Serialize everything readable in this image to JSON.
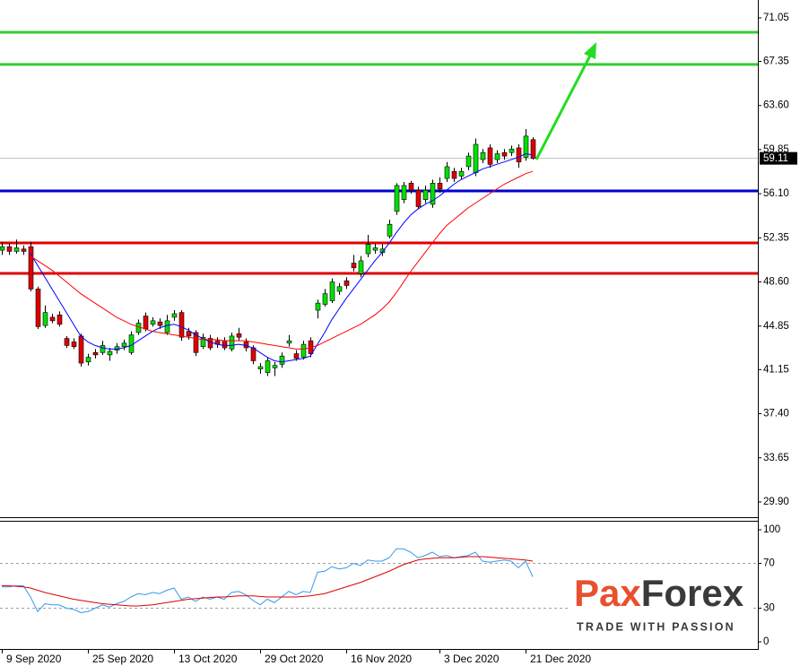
{
  "chart_data": [
    {
      "type": "candlestick",
      "categories": [
        "9 Sep 2020",
        null,
        null,
        null,
        null,
        null,
        null,
        null,
        null,
        null,
        null,
        null,
        "25 Sep 2020",
        null,
        null,
        null,
        null,
        null,
        null,
        null,
        null,
        null,
        null,
        null,
        "13 Oct 2020",
        null,
        null,
        null,
        null,
        null,
        null,
        null,
        null,
        null,
        null,
        null,
        "29 Oct 2020",
        null,
        null,
        null,
        null,
        null,
        null,
        null,
        null,
        null,
        null,
        null,
        "16 Nov 2020",
        null,
        null,
        null,
        null,
        null,
        null,
        null,
        null,
        null,
        null,
        null,
        null,
        "3 Dec 2020",
        null,
        null,
        null,
        null,
        null,
        null,
        null,
        null,
        null,
        null,
        null,
        "21 Dec 2020",
        null
      ],
      "open": [
        51.3,
        51.6,
        51.2,
        51.4,
        51.6,
        48.0,
        44.9,
        45.6,
        45.8,
        43.8,
        43.5,
        44.0,
        41.8,
        42.6,
        42.6,
        42.4,
        42.8,
        43.1,
        42.6,
        44.3,
        45.7,
        45.0,
        45.2,
        44.3,
        45.6,
        46.0,
        44.4,
        44.3,
        43.1,
        43.8,
        43.6,
        43.6,
        42.9,
        44.2,
        43.5,
        43.0,
        41.2,
        40.9,
        41.3,
        41.6,
        43.4,
        42.5,
        42.2,
        43.6,
        46.2,
        46.7,
        47.0,
        47.8,
        48.7,
        50.2,
        49.3,
        51.0,
        51.3,
        51.1,
        52.5,
        54.6,
        55.6,
        57.0,
        56.4,
        55.6,
        55.2,
        57.0,
        57.4,
        58.0,
        57.6,
        58.4,
        57.9,
        59.0,
        60.0,
        59.0,
        59.6,
        59.6,
        60.0,
        59.2,
        60.7
      ],
      "high": [
        52.0,
        51.9,
        52.2,
        51.7,
        52.0,
        48.2,
        46.6,
        45.9,
        46.1,
        44.0,
        43.8,
        44.2,
        42.5,
        42.9,
        43.6,
        43.0,
        43.4,
        43.7,
        44.4,
        45.4,
        46.0,
        45.6,
        45.5,
        45.8,
        46.2,
        46.2,
        44.7,
        44.5,
        44.2,
        44.1,
        43.9,
        43.9,
        44.3,
        44.7,
        43.8,
        43.2,
        41.7,
        42.2,
        41.8,
        42.6,
        44.1,
        42.8,
        43.6,
        43.9,
        47.1,
        48.0,
        48.9,
        48.5,
        49.0,
        50.9,
        50.8,
        52.6,
        51.9,
        51.8,
        53.9,
        57.0,
        57.1,
        57.2,
        56.7,
        56.8,
        57.3,
        57.5,
        58.8,
        58.3,
        58.3,
        59.6,
        60.8,
        59.9,
        60.3,
        59.8,
        59.9,
        60.2,
        60.3,
        61.6,
        60.9
      ],
      "low": [
        50.9,
        50.9,
        51.0,
        50.9,
        47.8,
        44.6,
        44.7,
        45.1,
        44.8,
        43.0,
        42.9,
        41.4,
        41.5,
        42.1,
        42.4,
        41.9,
        42.5,
        42.8,
        42.4,
        44.1,
        44.4,
        44.8,
        44.6,
        44.1,
        45.3,
        43.6,
        43.7,
        42.3,
        42.9,
        42.8,
        43.0,
        42.8,
        42.7,
        43.6,
        42.7,
        41.6,
        40.8,
        40.6,
        40.6,
        41.3,
        43.1,
        41.9,
        42.0,
        42.2,
        45.5,
        46.5,
        46.8,
        47.5,
        48.0,
        49.5,
        49.0,
        50.7,
        51.0,
        50.8,
        52.3,
        54.3,
        55.3,
        56.1,
        54.8,
        55.3,
        54.9,
        56.2,
        57.1,
        57.1,
        57.3,
        58.1,
        57.6,
        58.7,
        58.3,
        58.7,
        59.0,
        59.3,
        58.3,
        58.9,
        59.0
      ],
      "close": [
        51.6,
        51.2,
        51.5,
        51.2,
        48.0,
        44.8,
        46.0,
        45.3,
        45.0,
        43.2,
        43.1,
        41.7,
        42.2,
        42.4,
        43.2,
        42.7,
        43.1,
        43.4,
        44.1,
        45.1,
        44.6,
        45.3,
        44.9,
        45.3,
        45.9,
        43.9,
        44.0,
        42.6,
        43.9,
        43.0,
        43.3,
        43.0,
        44.0,
        43.9,
        43.0,
        41.9,
        41.4,
        41.9,
        41.5,
        42.3,
        43.6,
        42.1,
        43.3,
        42.5,
        46.8,
        47.6,
        48.6,
        48.2,
        48.3,
        49.8,
        50.4,
        51.8,
        51.5,
        51.4,
        53.5,
        56.8,
        56.8,
        56.4,
        55.0,
        56.4,
        57.0,
        56.5,
        58.4,
        57.4,
        58.0,
        59.3,
        60.3,
        59.6,
        58.6,
        59.5,
        59.3,
        59.9,
        58.8,
        61.0,
        59.11
      ],
      "up_color": "#00e000",
      "down_color": "#e00000",
      "ylim": [
        28.6,
        72.57
      ],
      "yticks": [
        71.05,
        67.35,
        {
          "value": 63.6,
          "label": "63.60"
        },
        59.85,
        {
          "value": 56.1,
          "label": "56.10"
        },
        52.35,
        {
          "value": 48.6,
          "label": "48.60"
        },
        44.85,
        41.15,
        {
          "value": 37.4,
          "label": "37.40"
        },
        33.65,
        {
          "value": 29.9,
          "label": "29.90"
        }
      ],
      "lines": [
        {
          "color": "#0000ff",
          "values": [
            null,
            null,
            null,
            null,
            51.0,
            50.0,
            49.0,
            48.0,
            47.0,
            46.0,
            45.0,
            44.0,
            43.5,
            43.2,
            43.0,
            42.9,
            42.9,
            43.0,
            43.2,
            43.6,
            44.0,
            44.4,
            44.7,
            44.9,
            45.0,
            44.8,
            44.5,
            44.1,
            43.8,
            43.5,
            43.3,
            43.2,
            43.2,
            43.3,
            43.2,
            43.0,
            42.6,
            42.2,
            41.9,
            41.8,
            41.9,
            42.0,
            42.1,
            42.3,
            43.3,
            44.3,
            45.4,
            46.3,
            47.2,
            48.0,
            48.8,
            49.6,
            50.4,
            51.1,
            51.9,
            52.8,
            53.6,
            54.3,
            54.8,
            55.2,
            55.5,
            55.9,
            56.4,
            56.9,
            57.3,
            57.6,
            57.9,
            58.2,
            58.4,
            58.6,
            58.8,
            59.0,
            59.2,
            59.5,
            59.4
          ]
        },
        {
          "color": "#ff0000",
          "values": [
            null,
            null,
            null,
            null,
            50.8,
            50.4,
            50.0,
            49.6,
            49.1,
            48.6,
            48.1,
            47.6,
            47.2,
            46.8,
            46.4,
            46.0,
            45.6,
            45.3,
            45.0,
            44.8,
            44.6,
            44.4,
            44.3,
            44.2,
            44.1,
            44.0,
            43.9,
            43.8,
            43.7,
            43.7,
            43.7,
            43.6,
            43.6,
            43.6,
            43.6,
            43.5,
            43.4,
            43.3,
            43.2,
            43.1,
            43.0,
            42.9,
            42.9,
            43.0,
            43.2,
            43.5,
            43.8,
            44.1,
            44.4,
            44.7,
            45.0,
            45.4,
            45.8,
            46.3,
            46.9,
            47.7,
            48.6,
            49.5,
            50.3,
            51.1,
            51.9,
            52.7,
            53.4,
            53.9,
            54.4,
            54.9,
            55.3,
            55.7,
            56.1,
            56.5,
            56.9,
            57.2,
            57.5,
            57.8,
            58.0
          ]
        }
      ],
      "levels": [
        {
          "value": 69.83,
          "color": "#33cc33"
        },
        {
          "value": 67.09,
          "color": "#33cc33"
        },
        {
          "value": 56.34,
          "color": "#0000cc"
        },
        {
          "value": 51.92,
          "color": "#e00000"
        },
        {
          "value": 49.33,
          "color": "#e00000"
        }
      ],
      "last_price_color": "#c0c0c0"
    },
    {
      "type": "line",
      "ylim": [
        -5.6,
        108.8
      ],
      "yticks": [
        100,
        70,
        30,
        0
      ],
      "levels": [
        70,
        30
      ],
      "lines": [
        {
          "color": "#3399ee",
          "values": [
            49,
            49,
            50,
            50,
            40,
            27,
            34,
            33,
            33,
            30,
            29,
            26,
            27,
            30,
            33,
            31,
            34,
            36,
            40,
            43,
            42,
            44,
            43,
            46,
            48,
            38,
            40,
            36,
            40,
            38,
            40,
            38,
            44,
            45,
            42,
            37,
            33,
            38,
            35,
            40,
            45,
            42,
            45,
            44,
            62,
            63,
            67,
            65,
            66,
            70,
            68,
            73,
            72,
            72,
            75,
            83,
            83,
            80,
            75,
            77,
            80,
            76,
            77,
            75,
            76,
            77,
            80,
            72,
            71,
            72,
            73,
            72,
            66,
            72,
            58
          ]
        },
        {
          "color": "#e00000",
          "values": [
            50,
            50,
            49.5,
            49,
            48,
            46,
            44,
            42.5,
            41,
            39.5,
            38,
            37,
            36,
            35,
            34,
            33.5,
            33,
            32.5,
            32,
            32,
            32.5,
            33,
            34,
            35,
            36,
            37,
            38,
            38.5,
            39,
            39.5,
            40,
            40,
            40.5,
            41,
            41,
            41,
            40.5,
            40,
            40,
            40,
            40,
            40,
            40.5,
            41,
            42,
            43,
            45,
            47,
            49,
            51,
            53,
            55.5,
            58,
            60.5,
            63,
            66,
            69,
            71,
            73,
            74,
            74.5,
            75,
            75,
            75,
            75.5,
            76,
            76,
            76,
            75.5,
            75,
            74.5,
            74,
            73.5,
            73,
            72
          ]
        }
      ]
    }
  ],
  "logo": {
    "name": "PaxForex",
    "tagline": "TRADE WITH PASSION"
  }
}
